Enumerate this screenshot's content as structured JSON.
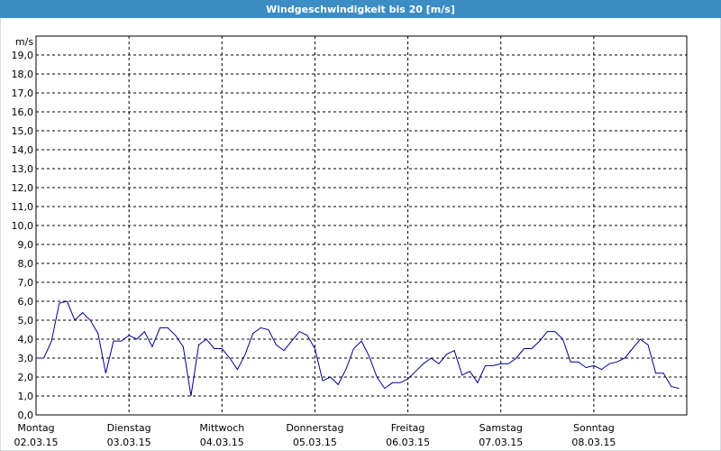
{
  "chart_data": {
    "type": "line",
    "title": "Windgeschwindigkeit bis 20 [m/s]",
    "y_unit": "m/s",
    "x": [
      0,
      2,
      4,
      6,
      8,
      10,
      12,
      14,
      16,
      18,
      20,
      22,
      24,
      26,
      28,
      30,
      32,
      34,
      36,
      38,
      40,
      42,
      44,
      46,
      48,
      50,
      52,
      54,
      56,
      58,
      60,
      62,
      64,
      66,
      68,
      70,
      72,
      74,
      76,
      78,
      80,
      82,
      84,
      86,
      88,
      90,
      92,
      94,
      96,
      98,
      100,
      102,
      104,
      106,
      108,
      110,
      112,
      114,
      116,
      118,
      120,
      122,
      124,
      126,
      128,
      130,
      132,
      134,
      136,
      138,
      140,
      142,
      144,
      146,
      148,
      150,
      152,
      154,
      156,
      158,
      160,
      162,
      164,
      166
    ],
    "series": [
      {
        "name": null,
        "color": "#00008b",
        "values": [
          3.0,
          3.0,
          3.9,
          5.9,
          6.0,
          5.0,
          5.4,
          5.0,
          4.3,
          2.2,
          3.9,
          3.9,
          4.2,
          4.0,
          4.4,
          3.6,
          4.6,
          4.6,
          4.2,
          3.6,
          1.0,
          3.7,
          4.0,
          3.5,
          3.5,
          3.0,
          2.4,
          3.2,
          4.3,
          4.6,
          4.5,
          3.7,
          3.4,
          3.9,
          4.4,
          4.2,
          3.5,
          1.8,
          2.0,
          1.6,
          2.4,
          3.5,
          3.9,
          3.1,
          2.0,
          1.4,
          1.7,
          1.7,
          1.9,
          2.3,
          2.7,
          3.0,
          2.7,
          3.2,
          3.4,
          2.1,
          2.3,
          1.7,
          2.6,
          2.6,
          2.7,
          2.7,
          3.0,
          3.5,
          3.5,
          3.9,
          4.4,
          4.4,
          4.0,
          2.8,
          2.8,
          2.5,
          2.6,
          2.4,
          2.7,
          2.8,
          3.0,
          3.5,
          4.0,
          3.7,
          2.2,
          2.2,
          1.5,
          1.4
        ]
      }
    ],
    "xlim": [
      0,
      168
    ],
    "xticks": [
      {
        "value": 0,
        "label": "Montag"
      },
      {
        "value": 24,
        "label": "Dienstag"
      },
      {
        "value": 48,
        "label": "Mittwoch"
      },
      {
        "value": 72,
        "label": "Donnerstag"
      },
      {
        "value": 96,
        "label": "Freitag"
      },
      {
        "value": 120,
        "label": "Samstag"
      },
      {
        "value": 144,
        "label": "Sonntag"
      }
    ],
    "xtick_dates": [
      "02.03.15",
      "03.03.15",
      "04.03.15",
      "05.03.15",
      "06.03.15",
      "07.03.15",
      "08.03.15"
    ],
    "ylim": [
      0,
      20
    ],
    "yticks": [
      {
        "value": 0,
        "label": "0,0"
      },
      {
        "value": 1,
        "label": "1,0"
      },
      {
        "value": 2,
        "label": "2,0"
      },
      {
        "value": 3,
        "label": "3,0"
      },
      {
        "value": 4,
        "label": "4,0"
      },
      {
        "value": 5,
        "label": "5,0"
      },
      {
        "value": 6,
        "label": "6,0"
      },
      {
        "value": 7,
        "label": "7,0"
      },
      {
        "value": 8,
        "label": "8,0"
      },
      {
        "value": 9,
        "label": "9,0"
      },
      {
        "value": 10,
        "label": "10,0"
      },
      {
        "value": 11,
        "label": "11,0"
      },
      {
        "value": 12,
        "label": "12,0"
      },
      {
        "value": 13,
        "label": "13,0"
      },
      {
        "value": 14,
        "label": "14,0"
      },
      {
        "value": 15,
        "label": "15,0"
      },
      {
        "value": 16,
        "label": "16,0"
      },
      {
        "value": 17,
        "label": "17,0"
      },
      {
        "value": 18,
        "label": "18,0"
      },
      {
        "value": 19,
        "label": "19,0"
      }
    ],
    "grid": true
  }
}
